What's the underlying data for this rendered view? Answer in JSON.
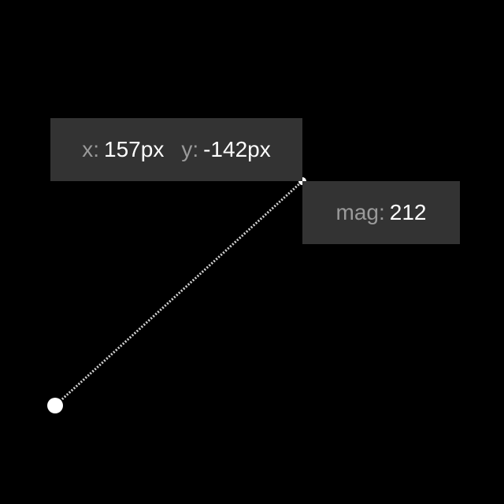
{
  "vector_readout": {
    "x_label": "x:",
    "x_value": "157px",
    "y_label": "y:",
    "y_value": "-142px",
    "mag_label": "mag:",
    "mag_value": "212"
  },
  "colors": {
    "background": "#000000",
    "panel": "#333333",
    "label": "#9a9a9a",
    "value": "#ffffff",
    "line": "#cccccc",
    "handle": "#ffffff"
  }
}
